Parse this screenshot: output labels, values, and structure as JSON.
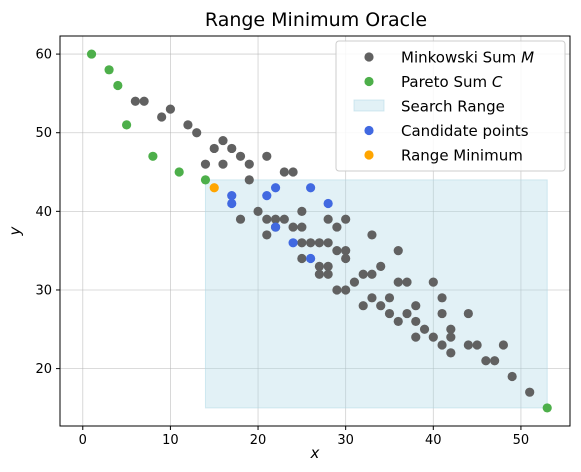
{
  "chart_data": {
    "type": "scatter",
    "title": "Range Minimum Oracle",
    "xlabel": "x",
    "ylabel": "y",
    "xlim": [
      -2.6,
      55.6
    ],
    "ylim": [
      12.7,
      62.3
    ],
    "xticks": [
      0,
      10,
      20,
      30,
      40,
      50
    ],
    "yticks": [
      20,
      30,
      40,
      50,
      60
    ],
    "grid": true,
    "legend_position": "top-right",
    "search_range": {
      "name": "Search Range",
      "color": "#add8e6",
      "x": [
        14,
        53
      ],
      "y": [
        15,
        44
      ]
    },
    "series": [
      {
        "name": "Minkowski Sum M",
        "color": "#616161",
        "points": [
          [
            6,
            54
          ],
          [
            7,
            54
          ],
          [
            10,
            53
          ],
          [
            9,
            52
          ],
          [
            12,
            51
          ],
          [
            13,
            50
          ],
          [
            14,
            46
          ],
          [
            15,
            48
          ],
          [
            16,
            49
          ],
          [
            17,
            48
          ],
          [
            18,
            47
          ],
          [
            19,
            46
          ],
          [
            16,
            46
          ],
          [
            19,
            44
          ],
          [
            21,
            47
          ],
          [
            23,
            45
          ],
          [
            24,
            45
          ],
          [
            20,
            40
          ],
          [
            21,
            39
          ],
          [
            22,
            39
          ],
          [
            23,
            39
          ],
          [
            25,
            40
          ],
          [
            24,
            38
          ],
          [
            25,
            38
          ],
          [
            21,
            37
          ],
          [
            22,
            38
          ],
          [
            18,
            39
          ],
          [
            25,
            36
          ],
          [
            26,
            36
          ],
          [
            27,
            36
          ],
          [
            28,
            36
          ],
          [
            28,
            39
          ],
          [
            29,
            38
          ],
          [
            30,
            39
          ],
          [
            25,
            34
          ],
          [
            29,
            35
          ],
          [
            30,
            35
          ],
          [
            30,
            34
          ],
          [
            27,
            33
          ],
          [
            28,
            33
          ],
          [
            27,
            32
          ],
          [
            28,
            32
          ],
          [
            31,
            31
          ],
          [
            29,
            30
          ],
          [
            30,
            30
          ],
          [
            32,
            32
          ],
          [
            33,
            32
          ],
          [
            34,
            33
          ],
          [
            33,
            37
          ],
          [
            35,
            29
          ],
          [
            33,
            29
          ],
          [
            32,
            28
          ],
          [
            34,
            28
          ],
          [
            35,
            27
          ],
          [
            36,
            35
          ],
          [
            36,
            31
          ],
          [
            37,
            31
          ],
          [
            36,
            26
          ],
          [
            37,
            27
          ],
          [
            38,
            28
          ],
          [
            38,
            26
          ],
          [
            38,
            24
          ],
          [
            39,
            25
          ],
          [
            40,
            31
          ],
          [
            40,
            24
          ],
          [
            41,
            29
          ],
          [
            41,
            27
          ],
          [
            41,
            23
          ],
          [
            42,
            25
          ],
          [
            42,
            24
          ],
          [
            42,
            22
          ],
          [
            44,
            27
          ],
          [
            44,
            23
          ],
          [
            45,
            23
          ],
          [
            46,
            21
          ],
          [
            47,
            21
          ],
          [
            48,
            23
          ],
          [
            49,
            19
          ],
          [
            51,
            17
          ]
        ]
      },
      {
        "name": "Pareto Sum C",
        "color": "#4daf4a",
        "points": [
          [
            1,
            60
          ],
          [
            3,
            58
          ],
          [
            4,
            56
          ],
          [
            5,
            51
          ],
          [
            8,
            47
          ],
          [
            11,
            45
          ],
          [
            14,
            44
          ],
          [
            53,
            15
          ]
        ]
      },
      {
        "name": "Candidate points",
        "color": "#4169e1",
        "points": [
          [
            17,
            42
          ],
          [
            17,
            41
          ],
          [
            21,
            42
          ],
          [
            22,
            43
          ],
          [
            22,
            38
          ],
          [
            24,
            36
          ],
          [
            26,
            43
          ],
          [
            26,
            34
          ],
          [
            28,
            41
          ]
        ]
      },
      {
        "name": "Range Minimum",
        "color": "#ffa500",
        "points": [
          [
            15,
            43
          ]
        ]
      }
    ],
    "legend": [
      {
        "label": "Minkowski Sum ",
        "math": "M",
        "type": "marker",
        "color": "#616161"
      },
      {
        "label": "Pareto Sum ",
        "math": "C",
        "type": "marker",
        "color": "#4daf4a"
      },
      {
        "label": "Search Range",
        "math": "",
        "type": "patch",
        "color": "#add8e6"
      },
      {
        "label": "Candidate points",
        "math": "",
        "type": "marker",
        "color": "#4169e1"
      },
      {
        "label": "Range Minimum",
        "math": "",
        "type": "marker",
        "color": "#ffa500"
      }
    ]
  }
}
